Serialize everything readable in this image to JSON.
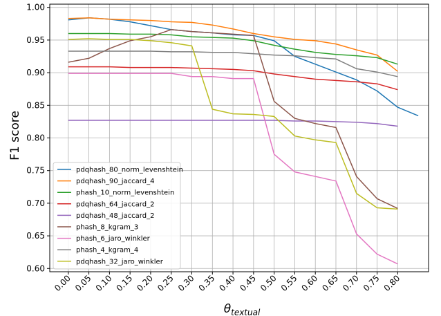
{
  "chart_data": {
    "type": "line",
    "title": "",
    "xlabel": "θ",
    "xlabel_subscript": "textual",
    "ylabel": "F1 score",
    "x": [
      0.0,
      0.05,
      0.1,
      0.15,
      0.2,
      0.25,
      0.3,
      0.35,
      0.4,
      0.45,
      0.5,
      0.55,
      0.6,
      0.65,
      0.7,
      0.75,
      0.8
    ],
    "x_tick_labels": [
      "0.00",
      "0.05",
      "0.10",
      "0.15",
      "0.20",
      "0.25",
      "0.30",
      "0.35",
      "0.40",
      "0.45",
      "0.50",
      "0.55",
      "0.60",
      "0.65",
      "0.70",
      "0.75",
      "0.80"
    ],
    "xlim": [
      -0.045,
      0.875
    ],
    "ylim": [
      0.595,
      1.005
    ],
    "y_ticks": [
      0.6,
      0.65,
      0.7,
      0.75,
      0.8,
      0.85,
      0.9,
      0.95,
      1.0
    ],
    "y_tick_labels": [
      "0.60",
      "0.65",
      "0.70",
      "0.75",
      "0.80",
      "0.85",
      "0.90",
      "0.95",
      "1.00"
    ],
    "grid": true,
    "legend_position": "lower-left",
    "series": [
      {
        "name": "pdqhash_80_norm_levenshtein",
        "color": "#1f77b4",
        "x": [
          0.0,
          0.05,
          0.1,
          0.15,
          0.2,
          0.25,
          0.3,
          0.35,
          0.4,
          0.45,
          0.5,
          0.55,
          0.6,
          0.65,
          0.7,
          0.75,
          0.8,
          0.85
        ],
        "values": [
          0.981,
          0.984,
          0.982,
          0.978,
          0.972,
          0.966,
          0.963,
          0.961,
          0.958,
          0.957,
          0.949,
          0.925,
          0.913,
          0.901,
          0.889,
          0.872,
          0.847,
          0.834
        ]
      },
      {
        "name": "pdqhash_90_jaccard_4",
        "color": "#ff7f0e",
        "values": [
          0.983,
          0.984,
          0.982,
          0.981,
          0.98,
          0.978,
          0.977,
          0.973,
          0.967,
          0.96,
          0.955,
          0.951,
          0.949,
          0.944,
          0.935,
          0.927,
          0.902
        ]
      },
      {
        "name": "phash_10_norm_levenshtein",
        "color": "#2ca02c",
        "values": [
          0.96,
          0.96,
          0.96,
          0.959,
          0.959,
          0.958,
          0.955,
          0.954,
          0.953,
          0.949,
          0.942,
          0.936,
          0.931,
          0.928,
          0.926,
          0.923,
          0.913
        ]
      },
      {
        "name": "pdqhash_64_jaccard_2",
        "color": "#d62728",
        "values": [
          0.909,
          0.909,
          0.909,
          0.908,
          0.908,
          0.908,
          0.907,
          0.906,
          0.905,
          0.903,
          0.898,
          0.894,
          0.89,
          0.888,
          0.886,
          0.883,
          0.874
        ]
      },
      {
        "name": "pdqhash_48_jaccard_2",
        "color": "#9467bd",
        "values": [
          0.827,
          0.827,
          0.827,
          0.827,
          0.827,
          0.827,
          0.827,
          0.827,
          0.827,
          0.827,
          0.827,
          0.826,
          0.826,
          0.825,
          0.824,
          0.822,
          0.818
        ]
      },
      {
        "name": "phash_8_kgram_3",
        "color": "#8c564b",
        "values": [
          0.916,
          0.922,
          0.937,
          0.949,
          0.955,
          0.966,
          0.963,
          0.961,
          0.959,
          0.957,
          0.856,
          0.83,
          0.822,
          0.816,
          0.741,
          0.707,
          0.692
        ]
      },
      {
        "name": "phash_6_jaro_winkler",
        "color": "#e377c2",
        "values": [
          0.899,
          0.899,
          0.899,
          0.899,
          0.899,
          0.899,
          0.894,
          0.894,
          0.891,
          0.891,
          0.775,
          0.748,
          0.741,
          0.734,
          0.653,
          0.622,
          0.607
        ]
      },
      {
        "name": "phash_4_kgram_4",
        "color": "#7f7f7f",
        "values": [
          0.933,
          0.933,
          0.933,
          0.933,
          0.933,
          0.932,
          0.932,
          0.931,
          0.931,
          0.929,
          0.927,
          0.926,
          0.923,
          0.921,
          0.906,
          0.901,
          0.894
        ]
      },
      {
        "name": "pdqhash_32_jaro_winkler",
        "color": "#bcbd22",
        "values": [
          0.951,
          0.952,
          0.951,
          0.951,
          0.949,
          0.946,
          0.941,
          0.844,
          0.837,
          0.836,
          0.833,
          0.803,
          0.797,
          0.793,
          0.715,
          0.693,
          0.691
        ]
      }
    ]
  }
}
